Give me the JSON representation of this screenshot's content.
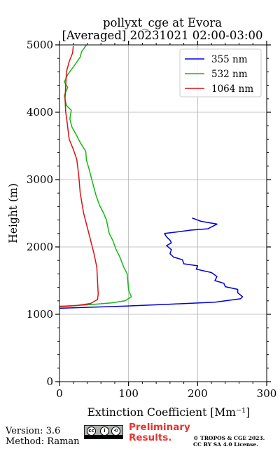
{
  "title_line1": "pollyxt_cge at Evora",
  "title_line2": "[Averaged] 20231021 02:00-03:00",
  "version": "Version: 3.6",
  "method": "Method: Raman",
  "preliminary_line1": "Preliminary",
  "preliminary_line2": "Results.",
  "copyright_line1": "© TROPOS & CGE 2023.",
  "copyright_line2": "CC BY SA 4.0 License.",
  "license_badge_label": "CC BY SA",
  "chart_data": {
    "type": "line",
    "xlabel": "Extinction Coefficient [Mm⁻¹]",
    "ylabel": "Height (m)",
    "xlim": [
      0,
      300
    ],
    "ylim": [
      0,
      5000
    ],
    "xticks": [
      0,
      100,
      200,
      300
    ],
    "yticks": [
      0,
      1000,
      2000,
      3000,
      4000,
      5000
    ],
    "grid": true,
    "legend_position": "top-right",
    "series": [
      {
        "name": "355 nm",
        "color": "#0000dd",
        "points": [
          [
            0,
            1090
          ],
          [
            90,
            1120
          ],
          [
            160,
            1150
          ],
          [
            225,
            1180
          ],
          [
            262,
            1230
          ],
          [
            265,
            1260
          ],
          [
            258,
            1320
          ],
          [
            258,
            1370
          ],
          [
            240,
            1410
          ],
          [
            238,
            1460
          ],
          [
            225,
            1500
          ],
          [
            228,
            1560
          ],
          [
            220,
            1620
          ],
          [
            198,
            1670
          ],
          [
            200,
            1720
          ],
          [
            180,
            1750
          ],
          [
            178,
            1810
          ],
          [
            165,
            1850
          ],
          [
            160,
            1900
          ],
          [
            162,
            1960
          ],
          [
            155,
            2020
          ],
          [
            162,
            2060
          ],
          [
            160,
            2100
          ],
          [
            155,
            2150
          ],
          [
            152,
            2200
          ],
          [
            168,
            2220
          ],
          [
            190,
            2250
          ],
          [
            215,
            2270
          ],
          [
            228,
            2340
          ],
          [
            205,
            2380
          ],
          [
            192,
            2430
          ]
        ]
      },
      {
        "name": "532 nm",
        "color": "#11bb11",
        "points": [
          [
            0,
            1120
          ],
          [
            40,
            1140
          ],
          [
            75,
            1170
          ],
          [
            95,
            1200
          ],
          [
            104,
            1260
          ],
          [
            100,
            1360
          ],
          [
            99,
            1480
          ],
          [
            98,
            1600
          ],
          [
            93,
            1700
          ],
          [
            87,
            1860
          ],
          [
            82,
            1960
          ],
          [
            77,
            2100
          ],
          [
            72,
            2200
          ],
          [
            68,
            2400
          ],
          [
            64,
            2500
          ],
          [
            58,
            2620
          ],
          [
            53,
            2760
          ],
          [
            48,
            2950
          ],
          [
            43,
            3150
          ],
          [
            39,
            3290
          ],
          [
            38,
            3420
          ],
          [
            30,
            3550
          ],
          [
            25,
            3650
          ],
          [
            18,
            3780
          ],
          [
            15,
            3900
          ],
          [
            17,
            4030
          ],
          [
            10,
            4100
          ],
          [
            7,
            4250
          ],
          [
            12,
            4370
          ],
          [
            7,
            4450
          ],
          [
            12,
            4560
          ],
          [
            22,
            4700
          ],
          [
            30,
            4820
          ],
          [
            32,
            4900
          ],
          [
            39,
            5000
          ]
        ]
      },
      {
        "name": "1064 nm",
        "color": "#dd1111",
        "points": [
          [
            0,
            1110
          ],
          [
            25,
            1130
          ],
          [
            45,
            1160
          ],
          [
            55,
            1220
          ],
          [
            56,
            1300
          ],
          [
            55,
            1500
          ],
          [
            54,
            1700
          ],
          [
            50,
            1900
          ],
          [
            45,
            2100
          ],
          [
            40,
            2300
          ],
          [
            35,
            2500
          ],
          [
            30,
            2800
          ],
          [
            28,
            3050
          ],
          [
            25,
            3300
          ],
          [
            20,
            3450
          ],
          [
            14,
            3600
          ],
          [
            11,
            3850
          ],
          [
            9,
            4000
          ],
          [
            8,
            4200
          ],
          [
            9,
            4400
          ],
          [
            10,
            4600
          ],
          [
            14,
            4750
          ],
          [
            19,
            4880
          ],
          [
            20,
            4980
          ]
        ]
      }
    ]
  }
}
